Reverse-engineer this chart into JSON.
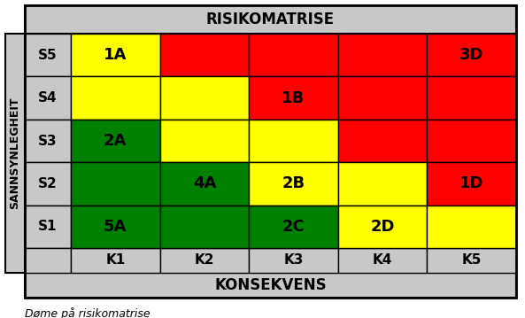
{
  "title": "RISIKOMATRISE",
  "xlabel": "KONSEKVENS",
  "ylabel": "SANNSYNLEGHEIT",
  "caption": "Døme på risikomatrise",
  "rows": [
    "S5",
    "S4",
    "S3",
    "S2",
    "S1"
  ],
  "cols": [
    "K1",
    "K2",
    "K3",
    "K4",
    "K5"
  ],
  "cell_colors": [
    [
      "yellow",
      "red",
      "red",
      "red",
      "red"
    ],
    [
      "yellow",
      "yellow",
      "red",
      "red",
      "red"
    ],
    [
      "green",
      "yellow",
      "yellow",
      "red",
      "red"
    ],
    [
      "green",
      "green",
      "yellow",
      "yellow",
      "red"
    ],
    [
      "green",
      "green",
      "green",
      "yellow",
      "yellow"
    ]
  ],
  "cell_labels": [
    [
      "1A",
      "",
      "",
      "",
      "3D"
    ],
    [
      "",
      "",
      "1B",
      "",
      ""
    ],
    [
      "2A",
      "",
      "",
      "",
      ""
    ],
    [
      "",
      "4A",
      "2B",
      "",
      "1D"
    ],
    [
      "5A",
      "",
      "2C",
      "2D",
      ""
    ]
  ],
  "color_map": {
    "green": "#008000",
    "yellow": "#FFFF00",
    "red": "#FF0000",
    "gray": "#C8C8C8",
    "white": "#FFFFFF"
  },
  "grid_color": "#000000",
  "title_fontsize": 12,
  "cell_fontsize": 11,
  "ylabel_fontsize": 9,
  "caption_fontsize": 9
}
